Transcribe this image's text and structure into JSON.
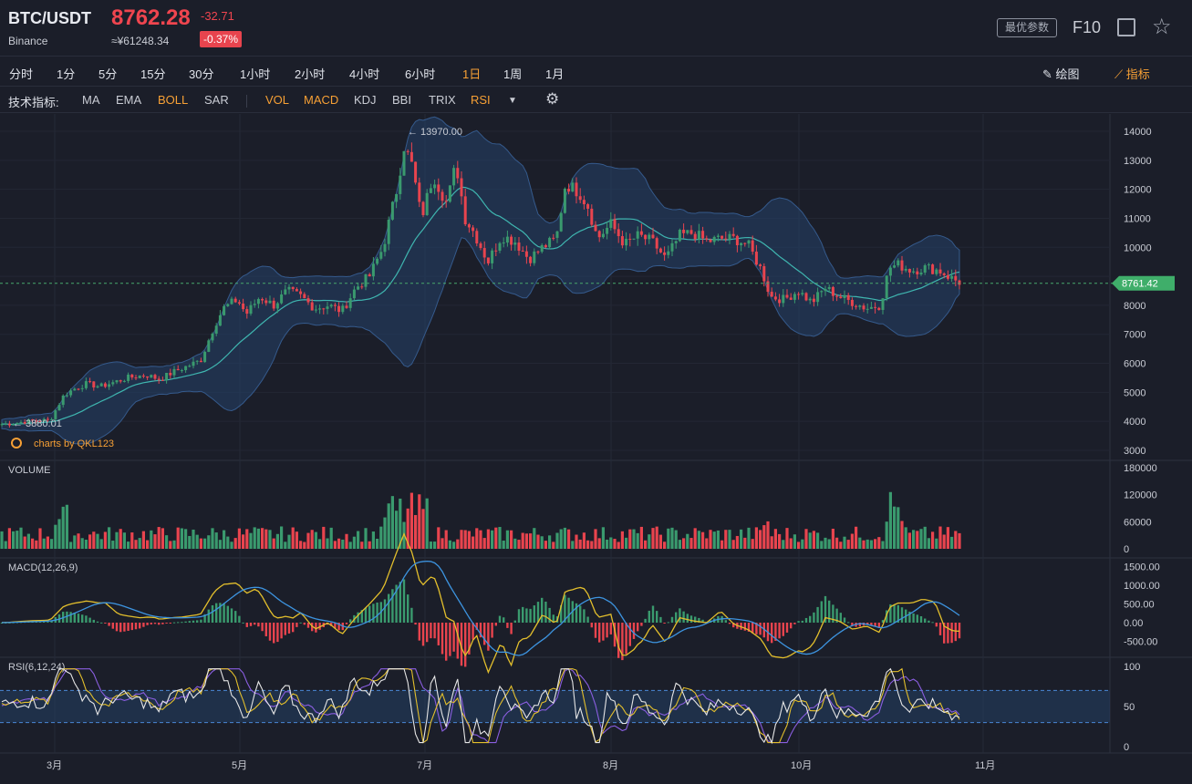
{
  "header": {
    "pair": "BTC/USDT",
    "exchange": "Binance",
    "price": "8762.28",
    "price_cny": "≈¥61248.34",
    "change": "-32.71",
    "change_pct": "-0.37%",
    "params_button": "最优参数",
    "f10": "F10"
  },
  "timeframes": [
    "分时",
    "1分",
    "5分",
    "15分",
    "30分",
    "1小时",
    "2小时",
    "4小时",
    "6小时",
    "1日",
    "1周",
    "1月"
  ],
  "active_timeframe": "1日",
  "tools": {
    "draw": "绘图",
    "indicators": "指标"
  },
  "indicator_bar": {
    "label": "技术指标:",
    "main": [
      "MA",
      "EMA",
      "BOLL",
      "SAR"
    ],
    "sub": [
      "VOL",
      "MACD",
      "KDJ",
      "BBI",
      "TRIX",
      "RSI"
    ],
    "active": [
      "BOLL",
      "VOL",
      "MACD",
      "RSI"
    ]
  },
  "colors": {
    "up": "#3a9a6e",
    "down": "#e8444e",
    "accent": "#f7a035",
    "boll_band": "#24416a",
    "boll_mid": "#3fb6b0",
    "macd_dif": "#e3bf2c",
    "macd_dea": "#3d94e0",
    "rsi6": "#e6e6e6",
    "rsi12": "#e3bf2c",
    "rsi24": "#8a5ee0"
  },
  "chart_data": [
    {
      "type": "candlestick",
      "title": "",
      "y_ticks": [
        "14000",
        "13000",
        "12000",
        "11000",
        "10000",
        "9000",
        "8000",
        "7000",
        "6000",
        "5000",
        "4000",
        "3000"
      ],
      "ylim": [
        2700,
        14500
      ],
      "x_ticks": [
        "3月",
        "5月",
        "7月",
        "8月",
        "10月",
        "11月"
      ],
      "max_label": "13970.00",
      "min_label": "3880.01",
      "current_price_tag": "8761.42",
      "watermark": "charts by QKL123",
      "overlay": "BOLL",
      "price_path": [
        [
          0,
          3900
        ],
        [
          10,
          3920
        ],
        [
          20,
          3960
        ],
        [
          30,
          4000
        ],
        [
          40,
          4020
        ],
        [
          55,
          4050
        ],
        [
          70,
          4900
        ],
        [
          80,
          5100
        ],
        [
          95,
          5300
        ],
        [
          110,
          5200
        ],
        [
          125,
          5350
        ],
        [
          140,
          5500
        ],
        [
          160,
          5600
        ],
        [
          175,
          5450
        ],
        [
          190,
          5700
        ],
        [
          205,
          5900
        ],
        [
          220,
          6100
        ],
        [
          235,
          7300
        ],
        [
          245,
          7900
        ],
        [
          260,
          8200
        ],
        [
          270,
          7700
        ],
        [
          285,
          8300
        ],
        [
          300,
          8000
        ],
        [
          315,
          8500
        ],
        [
          330,
          8300
        ],
        [
          345,
          7900
        ],
        [
          360,
          8000
        ],
        [
          375,
          7800
        ],
        [
          390,
          8600
        ],
        [
          405,
          9000
        ],
        [
          420,
          10000
        ],
        [
          435,
          12000
        ],
        [
          443,
          13500
        ],
        [
          452,
          12800
        ],
        [
          462,
          11000
        ],
        [
          475,
          12500
        ],
        [
          490,
          11500
        ],
        [
          500,
          12900
        ],
        [
          510,
          11000
        ],
        [
          520,
          10500
        ],
        [
          535,
          9500
        ],
        [
          550,
          10400
        ],
        [
          565,
          10200
        ],
        [
          580,
          9600
        ],
        [
          595,
          10000
        ],
        [
          610,
          10300
        ],
        [
          620,
          12200
        ],
        [
          635,
          11900
        ],
        [
          645,
          11400
        ],
        [
          655,
          10300
        ],
        [
          670,
          10800
        ],
        [
          685,
          10100
        ],
        [
          700,
          10400
        ],
        [
          715,
          10200
        ],
        [
          730,
          9600
        ],
        [
          745,
          10400
        ],
        [
          760,
          10500
        ],
        [
          775,
          10200
        ],
        [
          790,
          10300
        ],
        [
          805,
          10300
        ],
        [
          820,
          10100
        ],
        [
          835,
          9200
        ],
        [
          845,
          8300
        ],
        [
          860,
          8200
        ],
        [
          875,
          8500
        ],
        [
          890,
          8100
        ],
        [
          905,
          8600
        ],
        [
          920,
          8300
        ],
        [
          935,
          8100
        ],
        [
          950,
          7900
        ],
        [
          965,
          8000
        ],
        [
          975,
          9300
        ],
        [
          985,
          9400
        ],
        [
          1000,
          9200
        ],
        [
          1015,
          9300
        ],
        [
          1030,
          9200
        ],
        [
          1045,
          8900
        ],
        [
          1055,
          8760
        ]
      ]
    },
    {
      "type": "bar",
      "name": "VOLUME",
      "y_ticks": [
        "180000",
        "120000",
        "60000",
        "0"
      ],
      "ylim": [
        0,
        180000
      ]
    },
    {
      "type": "line",
      "name": "MACD(12,26,9)",
      "y_ticks": [
        "1500.00",
        "1000.00",
        "500.00",
        "0.00",
        "-500.00"
      ],
      "ylim": [
        -700,
        1500
      ]
    },
    {
      "type": "line",
      "name": "RSI(6,12,24)",
      "y_ticks": [
        "100",
        "50",
        "0"
      ],
      "ylim": [
        0,
        100
      ],
      "bands": [
        30,
        70
      ]
    }
  ]
}
